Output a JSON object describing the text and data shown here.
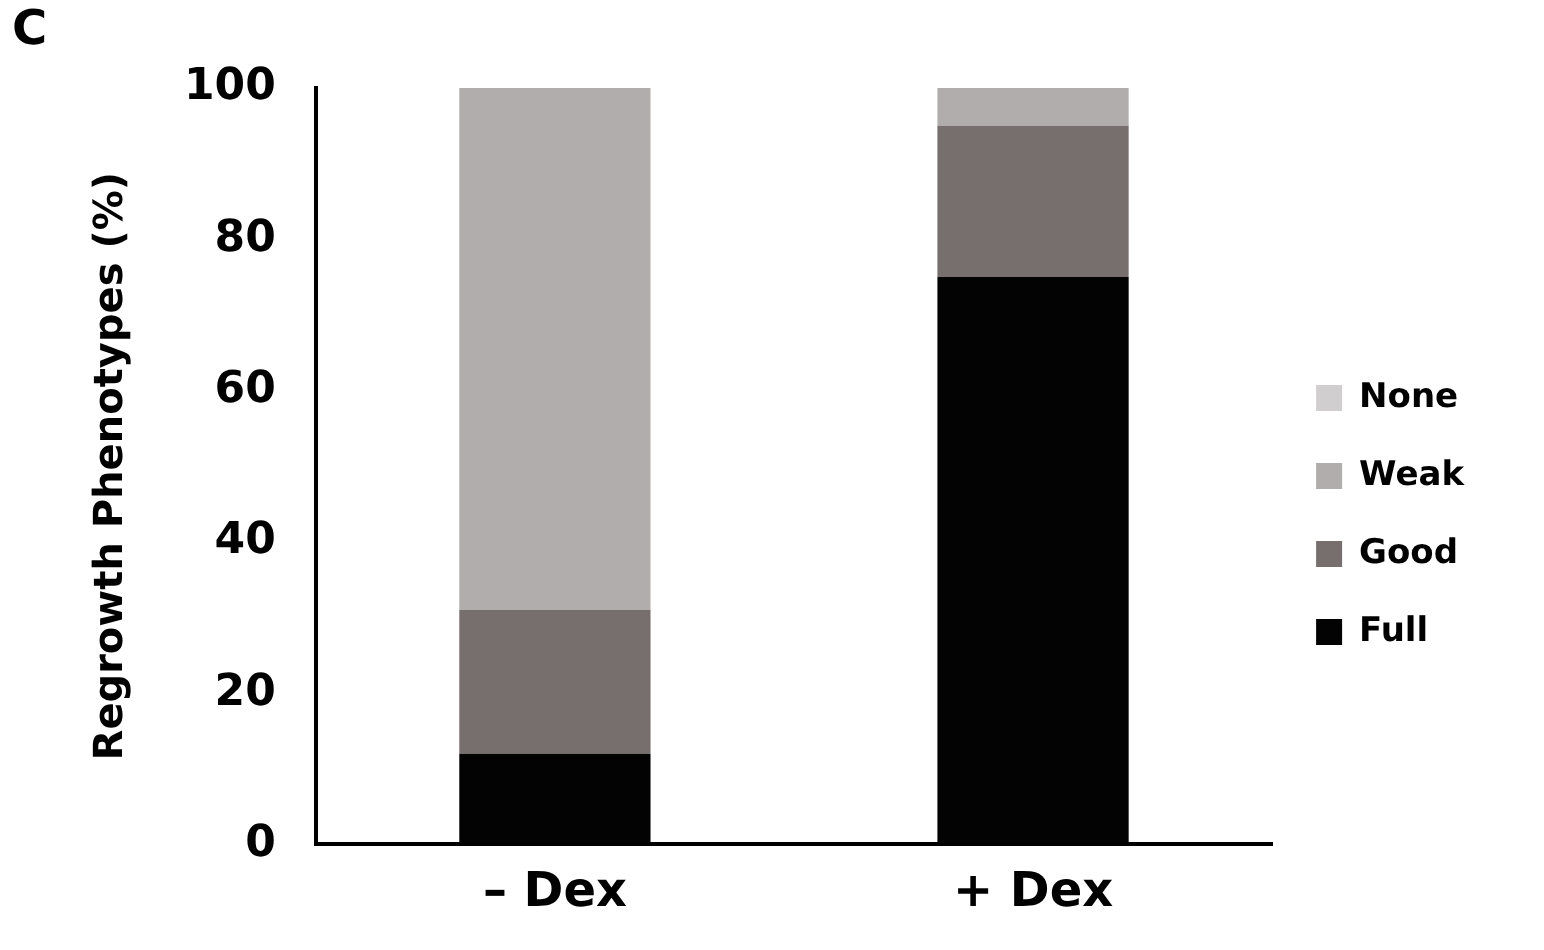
{
  "chart_data": {
    "type": "bar",
    "stacked": true,
    "ylabel": "Regrowth Phenotypes (%)",
    "annotations": [
      "C"
    ],
    "categories": [
      "– Dex",
      "+ Dex"
    ],
    "series": [
      {
        "name": "Full",
        "color": "#030303",
        "values": [
          12,
          75
        ]
      },
      {
        "name": "Good",
        "color": "#776e6e",
        "values": [
          19,
          20
        ]
      },
      {
        "name": "Weak",
        "color": "#b1adad",
        "values": [
          69,
          5
        ]
      },
      {
        "name": "None",
        "color": "#d0cece",
        "values": [
          0,
          0
        ]
      }
    ],
    "ylim": [
      0,
      100
    ],
    "yticks": [
      0,
      20,
      40,
      60,
      80,
      100
    ],
    "grid": false,
    "legend": "right"
  }
}
